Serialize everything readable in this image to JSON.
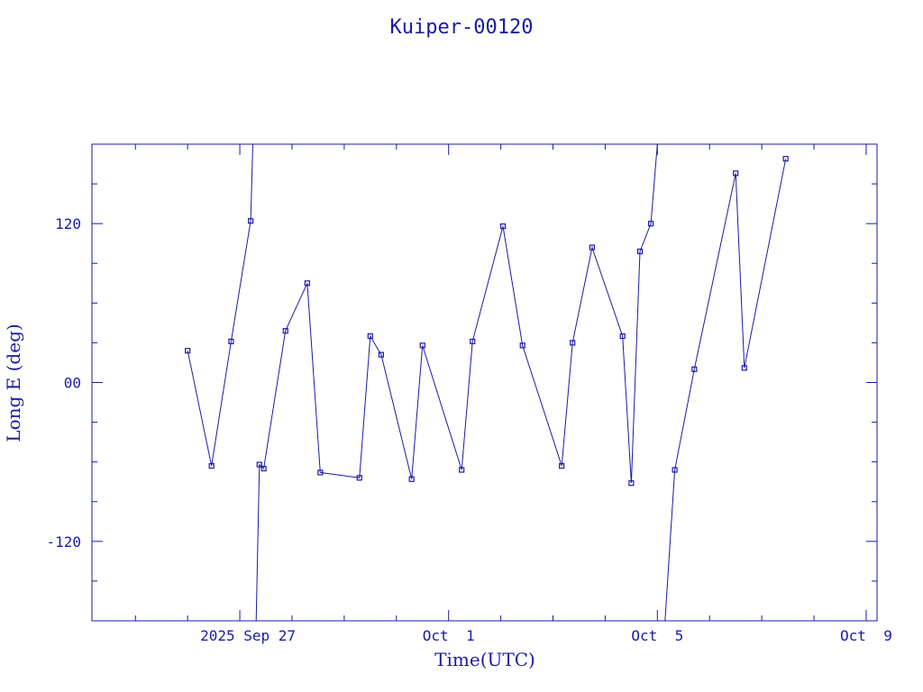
{
  "chart_data": {
    "type": "line",
    "title": "Kuiper-00120",
    "xlabel": "Time(UTC)",
    "ylabel": "Long E (deg)",
    "x_tick_labels": [
      "2025 Sep 27",
      "Oct  1",
      "Oct  5",
      "Oct  9"
    ],
    "y_tick_labels": [
      "-120",
      "00",
      "120"
    ],
    "y_ticks": [
      -120,
      0,
      120
    ],
    "xlim": [
      "2025-09-24T04:00",
      "2025-10-09T05:00"
    ],
    "ylim": [
      -180,
      180
    ],
    "grid": false,
    "legend": "none",
    "marker": "open-square",
    "colors": {
      "line": "#1a1aa6",
      "text": "#1a1aa6",
      "background": "#ffffff"
    },
    "segments": [
      [
        {
          "x": "2025-09-26T00:00",
          "y": 24
        },
        {
          "x": "2025-09-26T11:00",
          "y": -63
        },
        {
          "x": "2025-09-26T20:00",
          "y": 31
        },
        {
          "x": "2025-09-27T05:00",
          "y": 122
        },
        {
          "x": "2025-09-27T06:00",
          "y": 180
        }
      ],
      [
        {
          "x": "2025-09-27T07:30",
          "y": -180
        },
        {
          "x": "2025-09-27T09:00",
          "y": -62
        },
        {
          "x": "2025-09-27T11:00",
          "y": -65
        },
        {
          "x": "2025-09-27T21:00",
          "y": 39
        },
        {
          "x": "2025-09-28T07:00",
          "y": 75
        },
        {
          "x": "2025-09-28T13:00",
          "y": -68
        },
        {
          "x": "2025-09-29T07:00",
          "y": -72
        },
        {
          "x": "2025-09-29T12:00",
          "y": 35
        },
        {
          "x": "2025-09-29T17:00",
          "y": 21
        },
        {
          "x": "2025-09-30T07:00",
          "y": -73
        },
        {
          "x": "2025-09-30T12:00",
          "y": 28
        },
        {
          "x": "2025-10-01T06:00",
          "y": -66
        },
        {
          "x": "2025-10-01T11:00",
          "y": 31
        },
        {
          "x": "2025-10-02T01:00",
          "y": 118
        },
        {
          "x": "2025-10-02T10:00",
          "y": 28
        },
        {
          "x": "2025-10-03T04:00",
          "y": -63
        },
        {
          "x": "2025-10-03T09:00",
          "y": 30
        },
        {
          "x": "2025-10-03T18:00",
          "y": 102
        },
        {
          "x": "2025-10-04T08:00",
          "y": 35
        },
        {
          "x": "2025-10-04T12:00",
          "y": -76
        },
        {
          "x": "2025-10-04T16:00",
          "y": 99
        },
        {
          "x": "2025-10-04T21:00",
          "y": 120
        },
        {
          "x": "2025-10-05T00:00",
          "y": 180
        }
      ],
      [
        {
          "x": "2025-10-05T03:30",
          "y": -180
        },
        {
          "x": "2025-10-05T08:00",
          "y": -66
        },
        {
          "x": "2025-10-05T17:00",
          "y": 10
        },
        {
          "x": "2025-10-06T12:00",
          "y": 158
        },
        {
          "x": "2025-10-06T16:00",
          "y": 11
        },
        {
          "x": "2025-10-07T11:00",
          "y": 169
        }
      ]
    ]
  }
}
